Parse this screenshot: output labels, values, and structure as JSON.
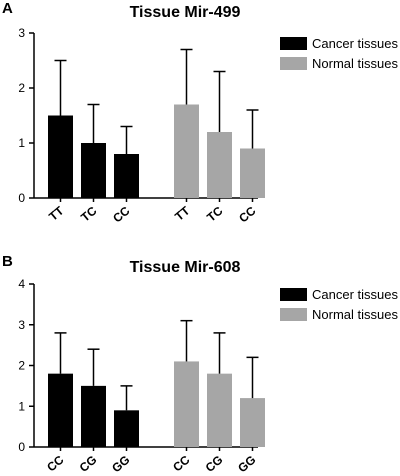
{
  "panels": [
    {
      "letter": "A"
    },
    {
      "letter": "B"
    }
  ],
  "chart_data": [
    {
      "type": "bar",
      "title": "Tissue Mir-499",
      "xlabel": "",
      "ylabel": "",
      "ylim": [
        0,
        3
      ],
      "yticks": [
        0,
        1,
        2,
        3
      ],
      "grid": false,
      "legend_position": "top-right",
      "series": [
        {
          "name": "Cancer tissues",
          "color": "#000000",
          "categories": [
            "TT",
            "TC",
            "CC"
          ],
          "values": [
            1.5,
            1.0,
            0.8
          ],
          "errors": [
            1.0,
            0.7,
            0.5
          ]
        },
        {
          "name": "Normal tissues",
          "color": "#a6a6a6",
          "categories": [
            "TT",
            "TC",
            "CC"
          ],
          "values": [
            1.7,
            1.2,
            0.9
          ],
          "errors": [
            1.0,
            1.1,
            0.7
          ]
        }
      ]
    },
    {
      "type": "bar",
      "title": "Tissue Mir-608",
      "xlabel": "",
      "ylabel": "",
      "ylim": [
        0,
        4
      ],
      "yticks": [
        0,
        1,
        2,
        3,
        4
      ],
      "grid": false,
      "legend_position": "top-right",
      "series": [
        {
          "name": "Cancer tissues",
          "color": "#000000",
          "categories": [
            "CC",
            "CG",
            "GG"
          ],
          "values": [
            1.8,
            1.5,
            0.9
          ],
          "errors": [
            1.0,
            0.9,
            0.6
          ]
        },
        {
          "name": "Normal tissues",
          "color": "#a6a6a6",
          "categories": [
            "CC",
            "CG",
            "GG"
          ],
          "values": [
            2.1,
            1.8,
            1.2
          ],
          "errors": [
            1.0,
            1.0,
            1.0
          ]
        }
      ]
    }
  ]
}
